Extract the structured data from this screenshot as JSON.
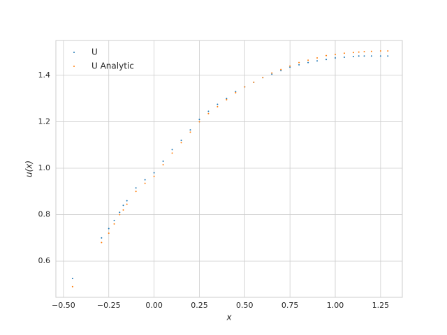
{
  "chart_data": {
    "type": "scatter",
    "xlabel": "x",
    "ylabel": "u(x)",
    "xlim": [
      -0.542,
      1.37
    ],
    "ylim": [
      0.444,
      1.55
    ],
    "xticks": [
      {
        "value": -0.5,
        "label": "−0.50"
      },
      {
        "value": -0.25,
        "label": "−0.25"
      },
      {
        "value": 0,
        "label": "0.00"
      },
      {
        "value": 0.25,
        "label": "0.25"
      },
      {
        "value": 0.5,
        "label": "0.50"
      },
      {
        "value": 0.75,
        "label": "0.75"
      },
      {
        "value": 1,
        "label": "1.00"
      },
      {
        "value": 1.25,
        "label": "1.25"
      }
    ],
    "yticks": [
      0.6,
      0.8,
      {
        "value": 1,
        "label": "1.0"
      },
      1.2,
      1.4
    ],
    "grid": true,
    "legend": "upper left",
    "series": [
      {
        "name": "U",
        "color": "#1f77b4",
        "x": [
          -0.45,
          -0.29,
          -0.25,
          -0.22,
          -0.19,
          -0.17,
          -0.15,
          -0.1,
          -0.05,
          0,
          0.05,
          0.1,
          0.15,
          0.2,
          0.25,
          0.3,
          0.35,
          0.4,
          0.45,
          0.5,
          0.55,
          0.6,
          0.65,
          0.7,
          0.75,
          0.8,
          0.85,
          0.9,
          0.95,
          1.0,
          1.05,
          1.1,
          1.13,
          1.16,
          1.2,
          1.25,
          1.29
        ],
        "values": [
          0.525,
          0.7,
          0.74,
          0.775,
          0.81,
          0.84,
          0.86,
          0.915,
          0.95,
          0.98,
          1.03,
          1.08,
          1.12,
          1.165,
          1.21,
          1.245,
          1.275,
          1.3,
          1.33,
          1.35,
          1.37,
          1.39,
          1.405,
          1.42,
          1.435,
          1.445,
          1.455,
          1.462,
          1.468,
          1.475,
          1.478,
          1.481,
          1.483,
          1.483,
          1.483,
          1.483,
          1.483
        ]
      },
      {
        "name": "U Analytic",
        "color": "#ff7f0e",
        "x": [
          -0.45,
          -0.29,
          -0.25,
          -0.22,
          -0.19,
          -0.17,
          -0.15,
          -0.1,
          -0.05,
          0,
          0.05,
          0.1,
          0.15,
          0.2,
          0.25,
          0.3,
          0.35,
          0.4,
          0.45,
          0.5,
          0.55,
          0.6,
          0.65,
          0.7,
          0.75,
          0.8,
          0.85,
          0.9,
          0.95,
          1.0,
          1.05,
          1.1,
          1.13,
          1.16,
          1.2,
          1.25,
          1.29
        ],
        "values": [
          0.49,
          0.68,
          0.72,
          0.76,
          0.8,
          0.82,
          0.845,
          0.9,
          0.935,
          0.965,
          1.015,
          1.065,
          1.11,
          1.155,
          1.2,
          1.235,
          1.265,
          1.295,
          1.325,
          1.35,
          1.37,
          1.39,
          1.41,
          1.425,
          1.44,
          1.455,
          1.465,
          1.475,
          1.485,
          1.49,
          1.495,
          1.498,
          1.5,
          1.502,
          1.503,
          1.505,
          1.505
        ]
      }
    ]
  }
}
